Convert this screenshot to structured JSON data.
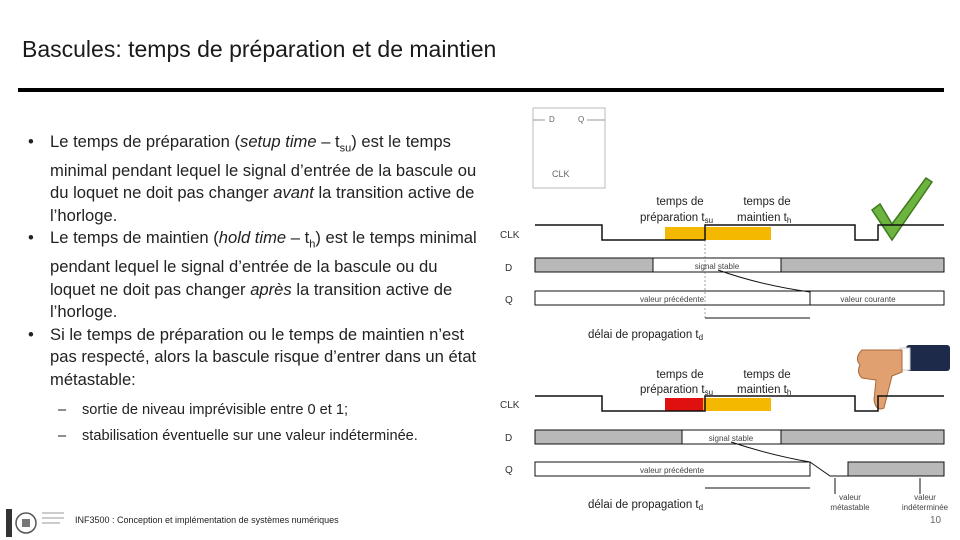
{
  "slide": {
    "title": "Bascules: temps de préparation et de maintien",
    "bullets": [
      {
        "pre": "Le temps de préparation (",
        "em": "setup time",
        "mid": " – t",
        "sub": "su",
        "post": ") est le temps minimal pendant lequel le signal d’entrée de la bascule ou du loquet ne doit pas changer ",
        "em2": "avant",
        "post2": " la transition active de l’horloge."
      },
      {
        "pre": "Le temps de maintien (",
        "em": "hold time",
        "mid": " – t",
        "sub": "h",
        "post": ") est le temps minimal pendant lequel le signal d’entrée de la bascule ou du loquet ne doit pas changer ",
        "em2": "après",
        "post2": " la transition active de l’horloge."
      },
      {
        "text": "Si le temps de préparation ou le temps de maintien n’est pas respecté, alors la bascule risque d’entrer dans un état métastable:"
      }
    ],
    "bullet_marker": "•",
    "dash_marker": "–",
    "subbullets": [
      "sortie de niveau imprévisible entre 0 et 1;",
      "stabilisation éventuelle sur une valeur indéterminée."
    ],
    "footer": "INF3500 : Conception et implémentation de systèmes numériques",
    "page": "10"
  },
  "diagram": {
    "symbol": {
      "d": "D",
      "q": "Q",
      "clk": "CLK"
    },
    "top": {
      "setup_label_1": "temps de",
      "setup_label_2": "préparation t",
      "setup_sub": "su",
      "hold_label_1": "temps de",
      "hold_label_2": "maintien t",
      "hold_sub": "h",
      "clk": "CLK",
      "d": "D",
      "q": "Q",
      "stable": "signal stable",
      "prev": "valeur précédente",
      "current": "valeur courante",
      "delay": "délai de propagation t",
      "delay_sub": "d"
    },
    "bottom": {
      "setup_label_1": "temps de",
      "setup_label_2": "préparation t",
      "setup_sub": "su",
      "hold_label_1": "temps de",
      "hold_label_2": "maintien t",
      "hold_sub": "h",
      "clk": "CLK",
      "d": "D",
      "q": "Q",
      "stable": "signal stable",
      "prev": "valeur précédente",
      "delay": "délai de propagation t",
      "delay_sub": "d",
      "meta1_a": "valeur",
      "meta1_b": "métastable",
      "meta2_a": "valeur",
      "meta2_b": "indéterminée"
    },
    "colors": {
      "ok_window": "#f5b800",
      "bad_window": "#e01010",
      "check": "#6db33f"
    },
    "icons": {
      "ok": "check-icon",
      "bad": "thumbs-down-icon"
    }
  }
}
